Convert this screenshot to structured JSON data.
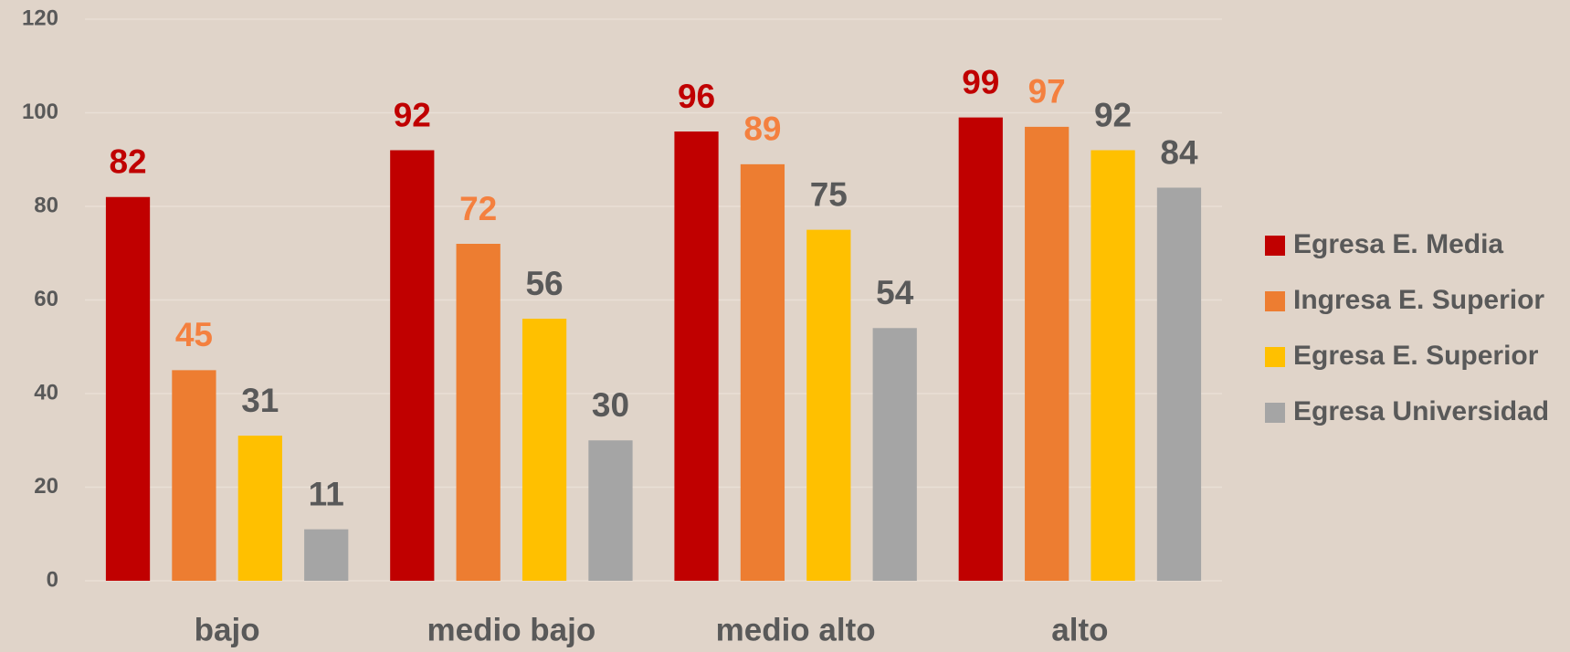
{
  "chart_data": {
    "type": "bar",
    "categories": [
      "bajo",
      "medio bajo",
      "medio alto",
      "alto"
    ],
    "series": [
      {
        "name": "Egresa E. Media",
        "color": "#c00000",
        "label_color": "#c00000",
        "values": [
          82,
          92,
          96,
          99
        ]
      },
      {
        "name": "Ingresa E. Superior",
        "color": "#ed7d31",
        "label_color": "#f4803f",
        "values": [
          45,
          72,
          89,
          97
        ]
      },
      {
        "name": "Egresa E. Superior",
        "color": "#ffc000",
        "label_color": "#595959",
        "values": [
          31,
          56,
          75,
          92
        ]
      },
      {
        "name": "Egresa Universidad",
        "color": "#a5a5a5",
        "label_color": "#595959",
        "values": [
          11,
          30,
          54,
          84
        ]
      }
    ],
    "ylim": [
      0,
      120
    ],
    "yticks": [
      0,
      20,
      40,
      60,
      80,
      100,
      120
    ],
    "grid": true,
    "legend": "right"
  }
}
